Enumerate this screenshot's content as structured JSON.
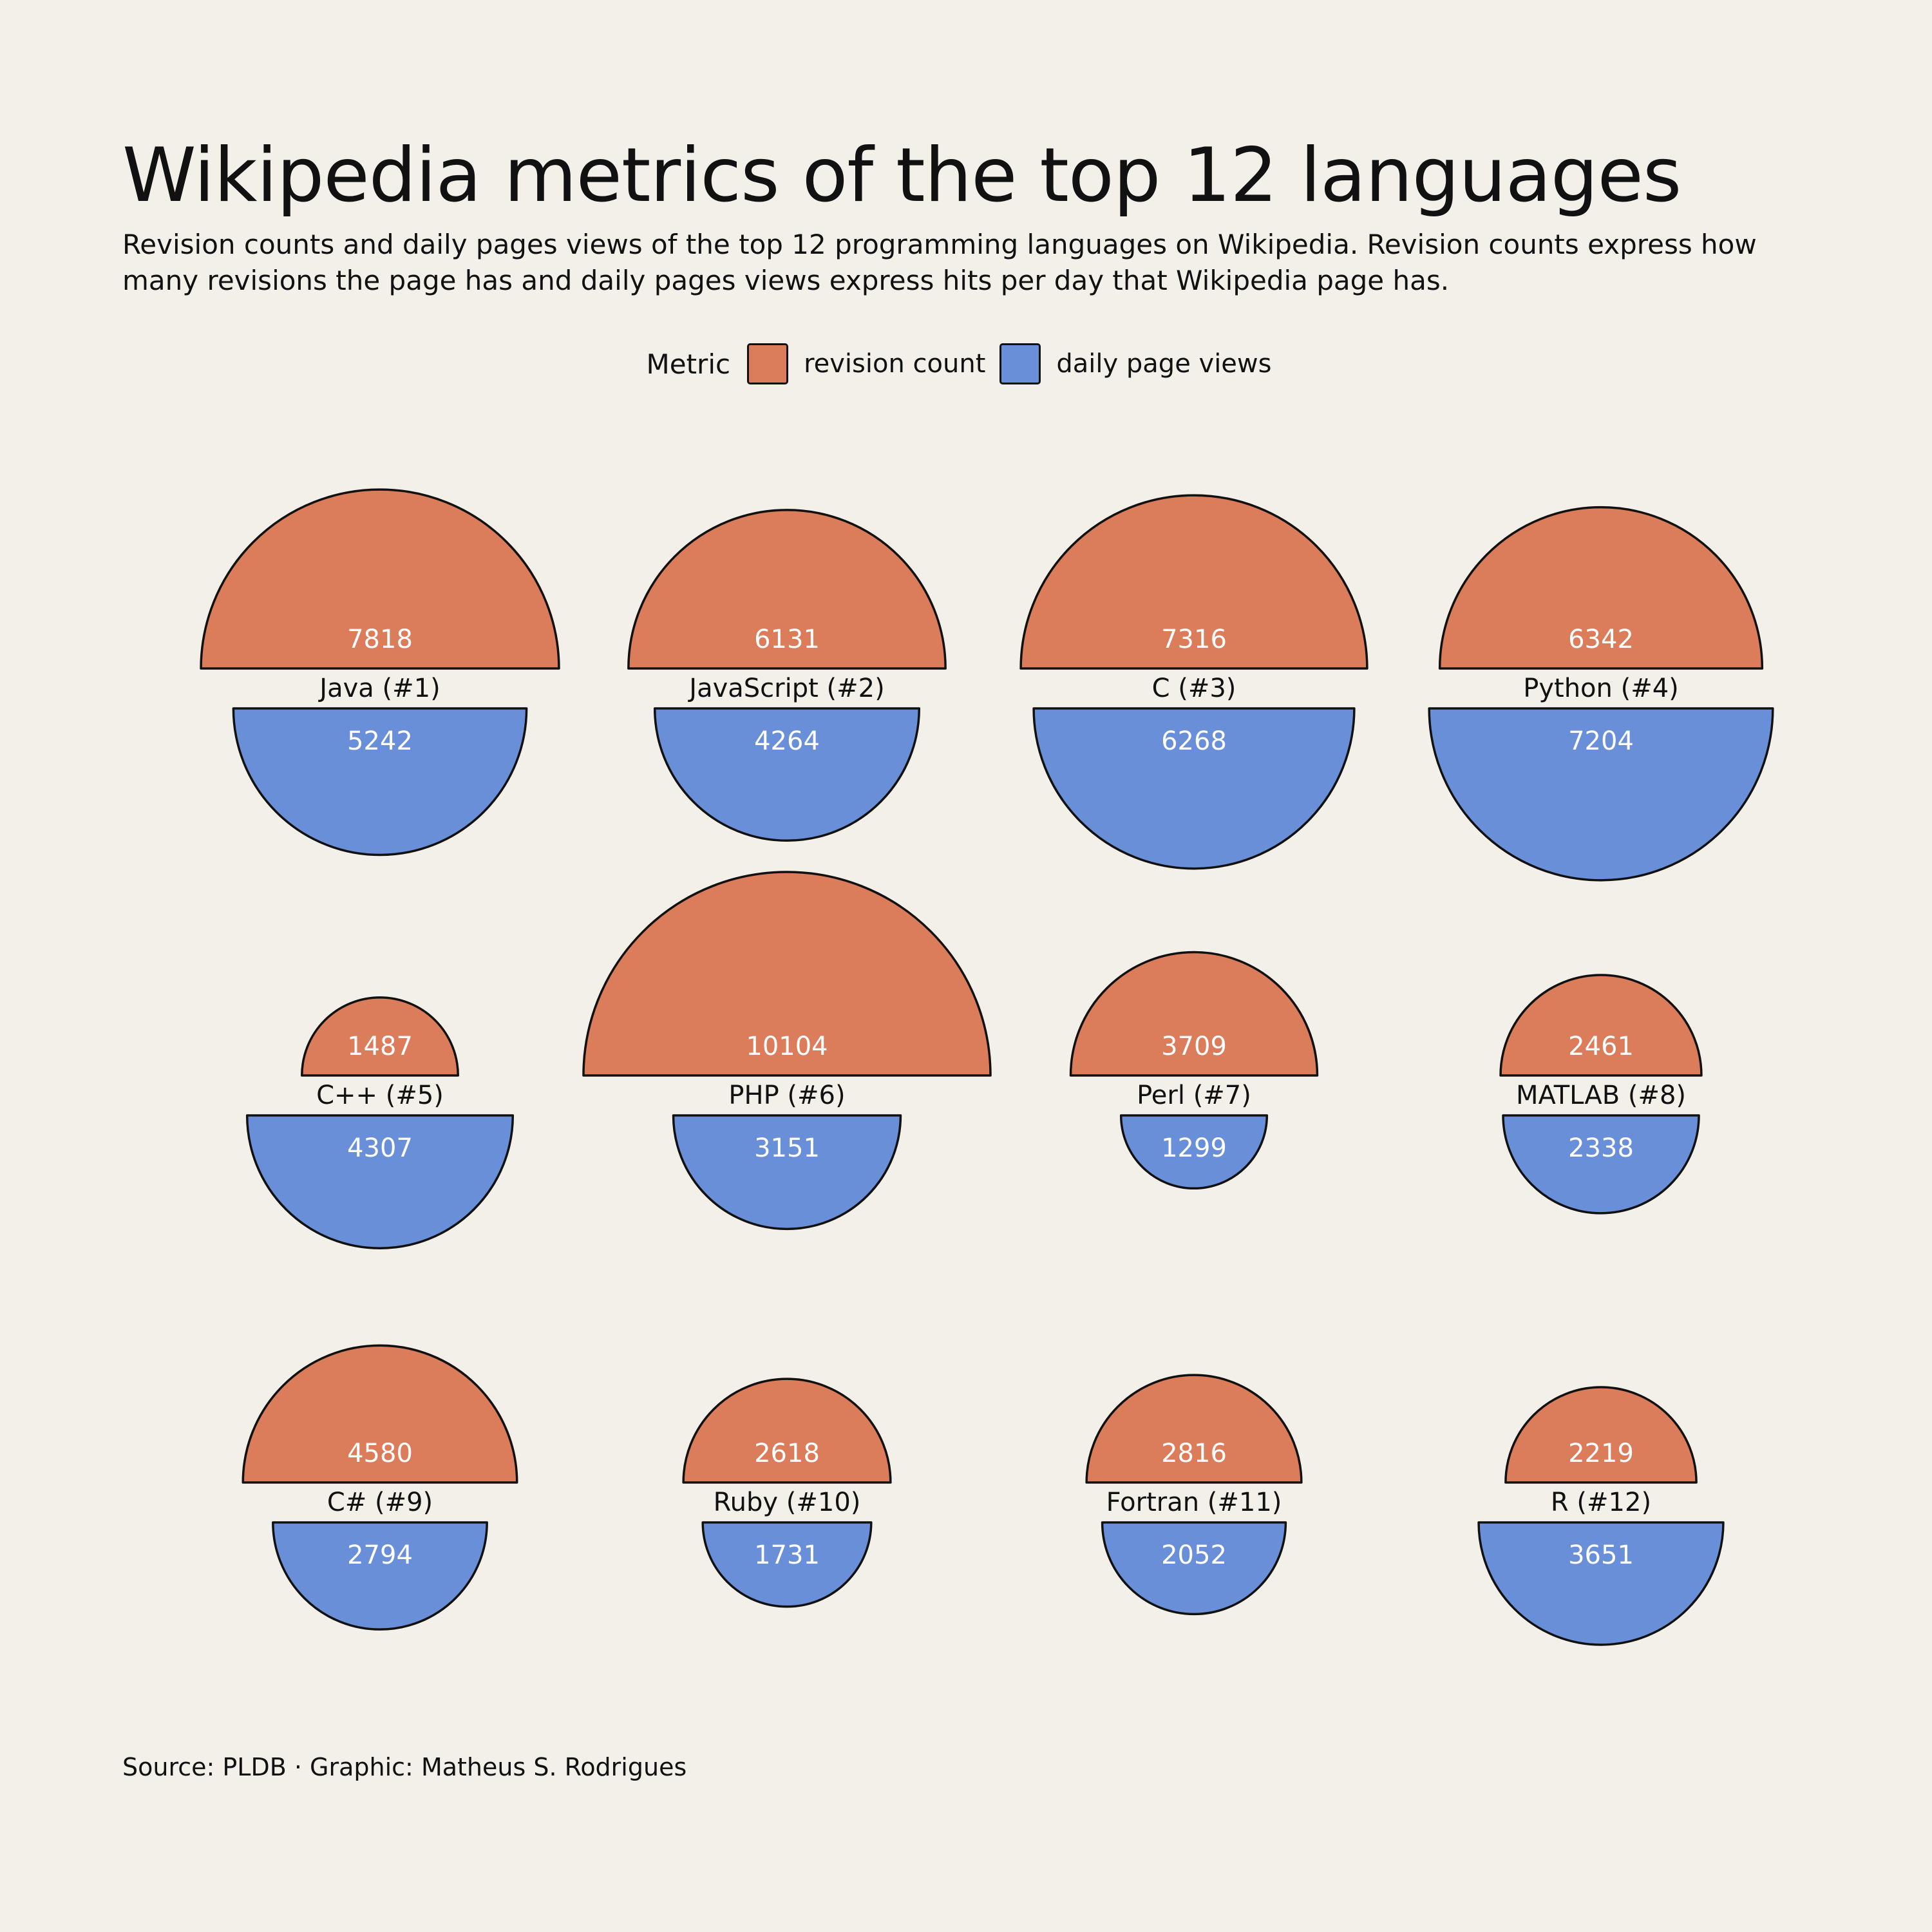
{
  "title": "Wikipedia metrics of the top 12 languages",
  "subtitle": "Revision counts and daily pages views of the top 12 programming languages on Wikipedia. Revision counts express how many revisions the page has and daily pages views express hits per day that Wikipedia page has.",
  "legend": {
    "title": "Metric",
    "items": [
      {
        "label": "revision count",
        "color": "#db7c5b"
      },
      {
        "label": "daily page views",
        "color": "#6a8fd9"
      }
    ]
  },
  "source": "Source: PLDB · Graphic: Matheus S. Rodrigues",
  "chart_data": {
    "type": "semicircle-proportional",
    "series": [
      {
        "name": "revision count",
        "color": "#db7c5b"
      },
      {
        "name": "daily page views",
        "color": "#6a8fd9"
      }
    ],
    "items": [
      {
        "label": "Java (#1)",
        "revision_count": 7818,
        "daily_page_views": 5242
      },
      {
        "label": "JavaScript (#2)",
        "revision_count": 6131,
        "daily_page_views": 4264
      },
      {
        "label": "C (#3)",
        "revision_count": 7316,
        "daily_page_views": 6268
      },
      {
        "label": "Python (#4)",
        "revision_count": 6342,
        "daily_page_views": 7204
      },
      {
        "label": "C++ (#5)",
        "revision_count": 1487,
        "daily_page_views": 4307
      },
      {
        "label": "PHP (#6)",
        "revision_count": 10104,
        "daily_page_views": 3151
      },
      {
        "label": "Perl (#7)",
        "revision_count": 3709,
        "daily_page_views": 1299
      },
      {
        "label": "MATLAB (#8)",
        "revision_count": 2461,
        "daily_page_views": 2338
      },
      {
        "label": "C# (#9)",
        "revision_count": 4580,
        "daily_page_views": 2794
      },
      {
        "label": "Ruby (#10)",
        "revision_count": 2618,
        "daily_page_views": 1731
      },
      {
        "label": "Fortran (#11)",
        "revision_count": 2816,
        "daily_page_views": 2052
      },
      {
        "label": "R (#12)",
        "revision_count": 2219,
        "daily_page_views": 3651
      }
    ]
  }
}
